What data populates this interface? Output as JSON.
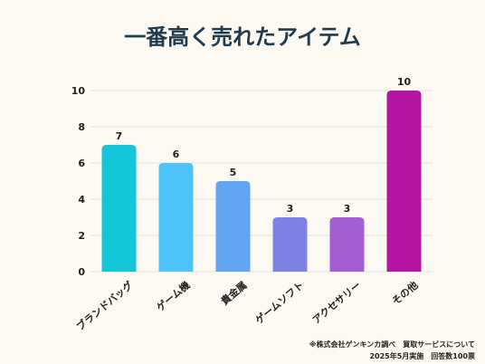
{
  "chart_data": {
    "type": "bar",
    "title": "一番高く売れたアイテム",
    "categories": [
      "ブランドバッグ",
      "ゲーム機",
      "貴金属",
      "ゲームソフト",
      "アクセサリー",
      "その他"
    ],
    "values": [
      7,
      6,
      5,
      3,
      3,
      10
    ],
    "colors": [
      "#13c7d9",
      "#4dc3f7",
      "#62a5f2",
      "#7f82e5",
      "#a35ed1",
      "#b614a3"
    ],
    "ylim": [
      0,
      10
    ],
    "yticks": [
      0,
      2,
      4,
      6,
      8,
      10
    ],
    "grid": true
  },
  "notes": {
    "source": "※株式会社ゲンキンカ調べ　買取サービスについて",
    "survey": "2025年5月実施　回答数100票"
  }
}
